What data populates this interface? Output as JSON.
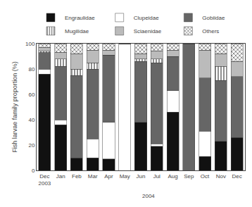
{
  "chart_data": {
    "type": "bar",
    "stacked": true,
    "categories": [
      "Dec\n2003",
      "Jan",
      "Feb",
      "Mar",
      "Apr",
      "May",
      "Jun",
      "Jul",
      "Aug",
      "Sep",
      "Oct",
      "Nov",
      "Dec"
    ],
    "series": [
      {
        "name": "Engraulidae",
        "color": "#111111",
        "values": [
          76,
          36,
          10,
          10,
          9,
          0,
          38,
          19,
          46,
          0,
          11,
          23,
          26
        ]
      },
      {
        "name": "Clupeidae",
        "color": "#ffffff",
        "values": [
          4,
          4,
          0,
          15,
          29,
          100,
          0,
          2,
          17,
          0,
          20,
          0,
          0
        ]
      },
      {
        "name": "Gobiidae",
        "color": "#666666",
        "values": [
          13,
          42,
          65,
          55,
          53,
          0,
          48,
          64,
          27,
          100,
          42,
          48,
          48
        ]
      },
      {
        "name": "Mugilidae",
        "color": "#ffffff",
        "marker": "vertical_hatch",
        "values": [
          1,
          6,
          5,
          5,
          0,
          0,
          2,
          3,
          0,
          0,
          0,
          11,
          0
        ]
      },
      {
        "name": "Sciaenidae",
        "color": "#bbbbbb",
        "values": [
          3,
          5,
          12,
          10,
          4,
          0,
          4,
          6,
          5,
          0,
          22,
          10,
          12
        ]
      },
      {
        "name": "Others",
        "color": "#ffffff",
        "marker": "cross_hatch",
        "values": [
          3,
          7,
          8,
          5,
          5,
          0,
          8,
          6,
          5,
          0,
          5,
          8,
          14
        ]
      }
    ],
    "ylabel": "Fish larvae family proportion (%)",
    "ylim": [
      0,
      100
    ],
    "yticks": [
      0,
      20,
      40,
      60,
      80,
      100
    ],
    "grid": false,
    "legend": "upper left",
    "annotations": [
      {
        "text": "2004"
      }
    ]
  }
}
